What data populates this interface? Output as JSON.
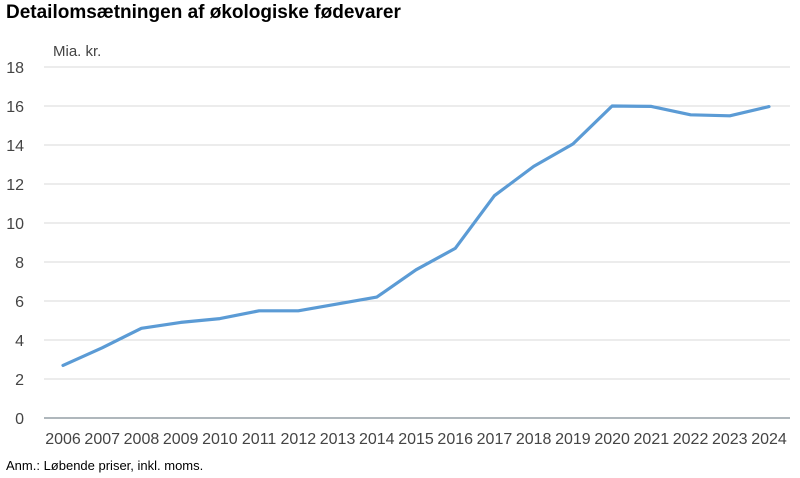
{
  "title": "Detailomsætningen af økologiske fødevarer",
  "note": "Anm.: Løbende priser, inkl. moms.",
  "chart_data": {
    "type": "line",
    "title": "Detailomsætningen af økologiske fødevarer",
    "ylabel": "Mia. kr.",
    "xlabel": "",
    "x": [
      "2006",
      "2007",
      "2008",
      "2009",
      "2010",
      "2011",
      "2012",
      "2013",
      "2014",
      "2015",
      "2016",
      "2017",
      "2018",
      "2019",
      "2020",
      "2021",
      "2022",
      "2023",
      "2024"
    ],
    "series": [
      {
        "values": [
          2.7,
          3.6,
          4.6,
          4.9,
          5.1,
          5.5,
          5.5,
          5.85,
          6.2,
          7.6,
          8.7,
          11.4,
          12.9,
          14.05,
          16.0,
          15.98,
          15.55,
          15.5,
          15.97
        ],
        "color": "#5b9bd5"
      }
    ],
    "ylim": [
      0,
      18
    ],
    "yticks": [
      "0",
      "2",
      "4",
      "6",
      "8",
      "10",
      "12",
      "14",
      "16",
      "18"
    ],
    "grid": true,
    "legend": "none",
    "colors": {
      "gridline": "#d9d9d9",
      "axis": "#7f8c93",
      "tick_text": "#444444"
    }
  }
}
